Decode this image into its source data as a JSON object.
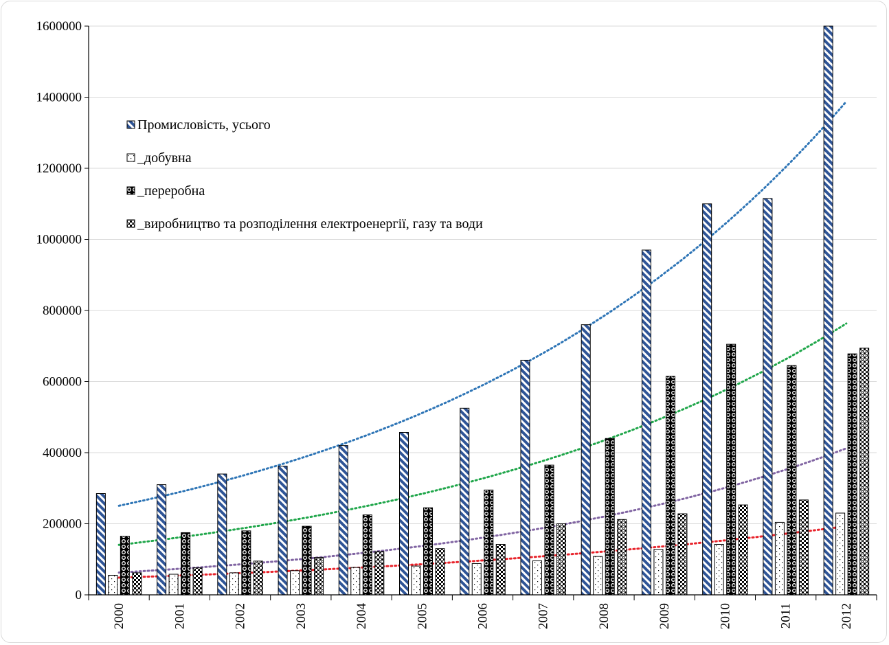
{
  "chart_data": {
    "type": "bar",
    "title": "",
    "xlabel": "",
    "ylabel": "",
    "ylim": [
      0,
      1600000
    ],
    "yticks": [
      "0",
      "200000",
      "400000",
      "600000",
      "800000",
      "1000000",
      "1200000",
      "1400000",
      "1600000"
    ],
    "grid": "horizontal",
    "legend_position": "upper-left inside",
    "categories": [
      "2000",
      "2001",
      "2002",
      "2003",
      "2004",
      "2005",
      "2006",
      "2007",
      "2008",
      "2009",
      "2010",
      "2011",
      "2012"
    ],
    "series": [
      {
        "name": "Промисловість, усього",
        "pattern": "diagonal-stripes",
        "color": "#2f5597",
        "trend_color": "#2e75b6",
        "values": [
          285000,
          310000,
          340000,
          362000,
          420000,
          457000,
          525000,
          660000,
          760000,
          970000,
          1100000,
          1115000,
          1600000
        ]
      },
      {
        "name": "_добувна",
        "pattern": "sparse-dots",
        "color": "#000000",
        "trend_color": "#e8232b",
        "values": [
          55000,
          58000,
          62000,
          68000,
          77000,
          81000,
          88000,
          96000,
          108000,
          128000,
          142000,
          204000,
          230000
        ]
      },
      {
        "name": "_переробна",
        "pattern": "circles-on-dark",
        "color": "#000000",
        "trend_color": "#1fa64a",
        "values": [
          165000,
          175000,
          180000,
          193000,
          225000,
          245000,
          295000,
          365000,
          440000,
          615000,
          705000,
          645000,
          678000
        ]
      },
      {
        "name": "_виробництво та розподілення електроенергії, газу та води",
        "pattern": "checker-dots",
        "color": "#000000",
        "trend_color": "#8064a2",
        "values": [
          62000,
          76000,
          95000,
          105000,
          122000,
          130000,
          142000,
          200000,
          212000,
          228000,
          253000,
          267000,
          694000
        ]
      }
    ],
    "trendlines": "exponential, dotted"
  }
}
